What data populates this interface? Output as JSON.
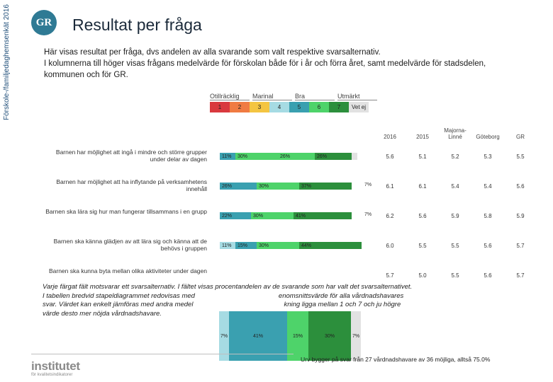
{
  "sidebar": {
    "text": "Förskole-/familjedaghemsenkät 2016"
  },
  "header": {
    "logo": "GR",
    "title": "Resultat per fråga"
  },
  "intro": {
    "line1": "Här visas resultat per fråga, dvs andelen av alla svarande som valt respektive svarsalternativ.",
    "line2": "I kolumnerna till höger visas frågans medelvärde för förskolan både för i år och förra året, samt medelvärde för stadsdelen, kommunen och för GR."
  },
  "scale": {
    "groups": [
      "Otillräcklig",
      "Marinal",
      "Bra",
      "Utmärkt"
    ],
    "items": [
      {
        "label": "1",
        "color": "#d9393e"
      },
      {
        "label": "2",
        "color": "#f07b42"
      },
      {
        "label": "3",
        "color": "#f4c542"
      },
      {
        "label": "4",
        "color": "#a6dbe3"
      },
      {
        "label": "5",
        "color": "#3aa0b0"
      },
      {
        "label": "6",
        "color": "#4ed36a"
      },
      {
        "label": "7",
        "color": "#2c8f3c"
      },
      {
        "label": "Vet ej",
        "color": "#e2e2e2"
      }
    ]
  },
  "columns": [
    "2016",
    "2015",
    "Majorna-Linné",
    "Göteborg",
    "GR"
  ],
  "rows": [
    {
      "label": "Barnen har möjlighet att ingå i mindre och större grupper under delar av dagen",
      "segments": [
        {
          "pct": 11,
          "label": "11%",
          "color": "#3aa0b0"
        },
        {
          "pct": 30,
          "label": "30%",
          "color": "#4ed36a"
        },
        {
          "pct": 26,
          "label": "26%",
          "color": "#4ed36a"
        },
        {
          "pct": 26,
          "label": "26%",
          "color": "#2c8f3c"
        },
        {
          "pct": 4,
          "label": "",
          "color": "#e2e2e2"
        }
      ],
      "tail": "",
      "values": [
        "5.6",
        "5.1",
        "5.2",
        "5.3",
        "5.5"
      ]
    },
    {
      "label": "Barnen har möjlighet att ha inflytande på verksamhetens innehåll",
      "segments": [
        {
          "pct": 26,
          "label": "26%",
          "color": "#3aa0b0"
        },
        {
          "pct": 30,
          "label": "30%",
          "color": "#4ed36a"
        },
        {
          "pct": 37,
          "label": "37%",
          "color": "#2c8f3c"
        }
      ],
      "tail": "7%",
      "values": [
        "6.1",
        "6.1",
        "5.4",
        "5.4",
        "5.6"
      ]
    },
    {
      "label": "Barnen ska lära sig hur man fungerar tillsammans i en grupp",
      "segments": [
        {
          "pct": 22,
          "label": "22%",
          "color": "#3aa0b0"
        },
        {
          "pct": 30,
          "label": "30%",
          "color": "#4ed36a"
        },
        {
          "pct": 41,
          "label": "41%",
          "color": "#2c8f3c"
        }
      ],
      "tail": "7%",
      "values": [
        "6.2",
        "5.6",
        "5.9",
        "5.8",
        "5.9"
      ]
    },
    {
      "label": "Barnen ska känna glädjen av att lära sig och känna att de behövs i gruppen",
      "segments": [
        {
          "pct": 11,
          "label": "11%",
          "color": "#a6dbe3"
        },
        {
          "pct": 15,
          "label": "15%",
          "color": "#3aa0b0"
        },
        {
          "pct": 30,
          "label": "30%",
          "color": "#4ed36a"
        },
        {
          "pct": 44,
          "label": "44%",
          "color": "#2c8f3c"
        }
      ],
      "tail": "",
      "values": [
        "6.0",
        "5.5",
        "5.5",
        "5.6",
        "5.7"
      ]
    },
    {
      "label": "Barnen ska kunna byta mellan olika aktiviteter under dagen",
      "segments": [],
      "tail": "",
      "values": [
        "5.7",
        "5.0",
        "5.5",
        "5.6",
        "5.7"
      ]
    }
  ],
  "footnote": {
    "line1": "Varje färgat fält motsvarar ett svarsalternativ. I fältet visas procentandelen av de svarande som har valt det svarsalternativet.",
    "line2": "I tabellen bredvid stapeldiagrammet redovisas med",
    "line2b": "enomsnittsvärde för alla vårdnadshavares",
    "line3": "svar. Värdet kan enkelt jämföras med andra medel",
    "line3b": "kning ligga mellan 1 och 7 och ju högre",
    "line4": "värde desto mer nöjda vårdnadshavare."
  },
  "overlay": {
    "segments": [
      {
        "pct": 7,
        "label": "7%",
        "color": "#a6dbe3"
      },
      {
        "pct": 41,
        "label": "41%",
        "color": "#3aa0b0"
      },
      {
        "pct": 15,
        "label": "15%",
        "color": "#4ed36a"
      },
      {
        "pct": 30,
        "label": "30%",
        "color": "#2c8f3c"
      },
      {
        "pct": 7,
        "label": "7%",
        "color": "#e2e2e2"
      }
    ]
  },
  "bottom_note": "Urv bygger på svar från 27 vårdnadshavare av 36 möjliga, alltså 75.0%",
  "footer": {
    "brand": "institutet",
    "sub": "för kvalitetsindikatorer"
  }
}
